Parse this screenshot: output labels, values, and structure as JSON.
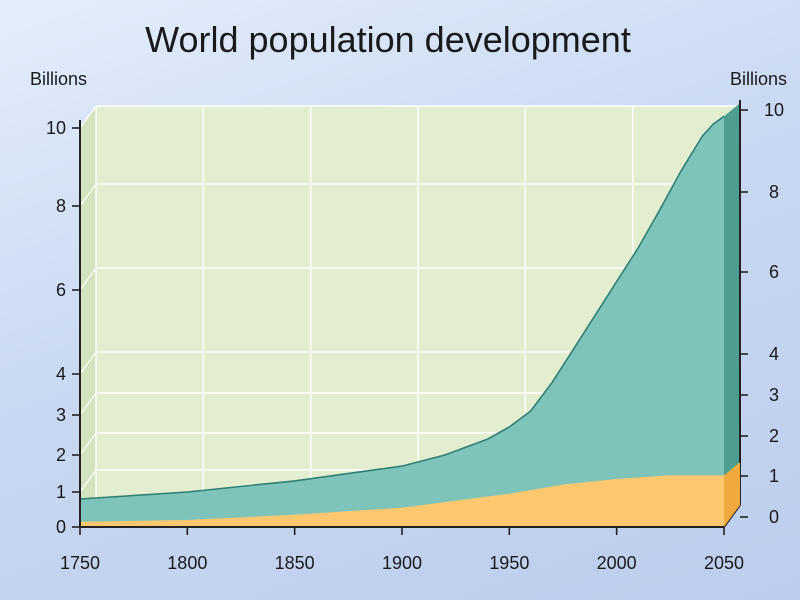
{
  "chart_data": {
    "type": "area",
    "title": "World population development",
    "ylabel_left": "Billions",
    "ylabel_right": "Billions",
    "x_ticks": [
      "1750",
      "1800",
      "1850",
      "1900",
      "1950",
      "2000",
      "2050"
    ],
    "y_ticks_left": [
      "0",
      "1",
      "2",
      "3",
      "4",
      "6",
      "8",
      "10"
    ],
    "y_ticks_right": [
      "0",
      "1",
      "2",
      "3",
      "4",
      "6",
      "8",
      "10"
    ],
    "xlim": [
      1750,
      2050
    ],
    "ylim": [
      0,
      10
    ],
    "y_scale": "linear with compressed 0–4 segment",
    "grid": true,
    "colors": {
      "plot_background": "#e3eed1",
      "upper_area": "#7fc4bb",
      "upper_line": "#2f7f74",
      "lower_area": "#ffc86e",
      "side_face": "#4e9e90",
      "axis": "#222222"
    },
    "series": [
      {
        "x": [
          1750,
          1800,
          1850,
          1900,
          1920,
          1940,
          1950,
          1960,
          1970,
          1980,
          1990,
          2000,
          2010,
          2020,
          2030,
          2040,
          2045,
          2050
        ],
        "values": [
          0.8,
          1.0,
          1.3,
          1.7,
          2.0,
          2.4,
          2.7,
          3.1,
          3.8,
          4.6,
          5.4,
          6.2,
          7.0,
          7.9,
          8.9,
          9.8,
          10.1,
          10.3
        ]
      },
      {
        "x": [
          1750,
          1800,
          1850,
          1900,
          1950,
          1975,
          2000,
          2025,
          2050
        ],
        "values": [
          0.15,
          0.2,
          0.35,
          0.55,
          0.95,
          1.2,
          1.35,
          1.45,
          1.45
        ]
      }
    ]
  }
}
